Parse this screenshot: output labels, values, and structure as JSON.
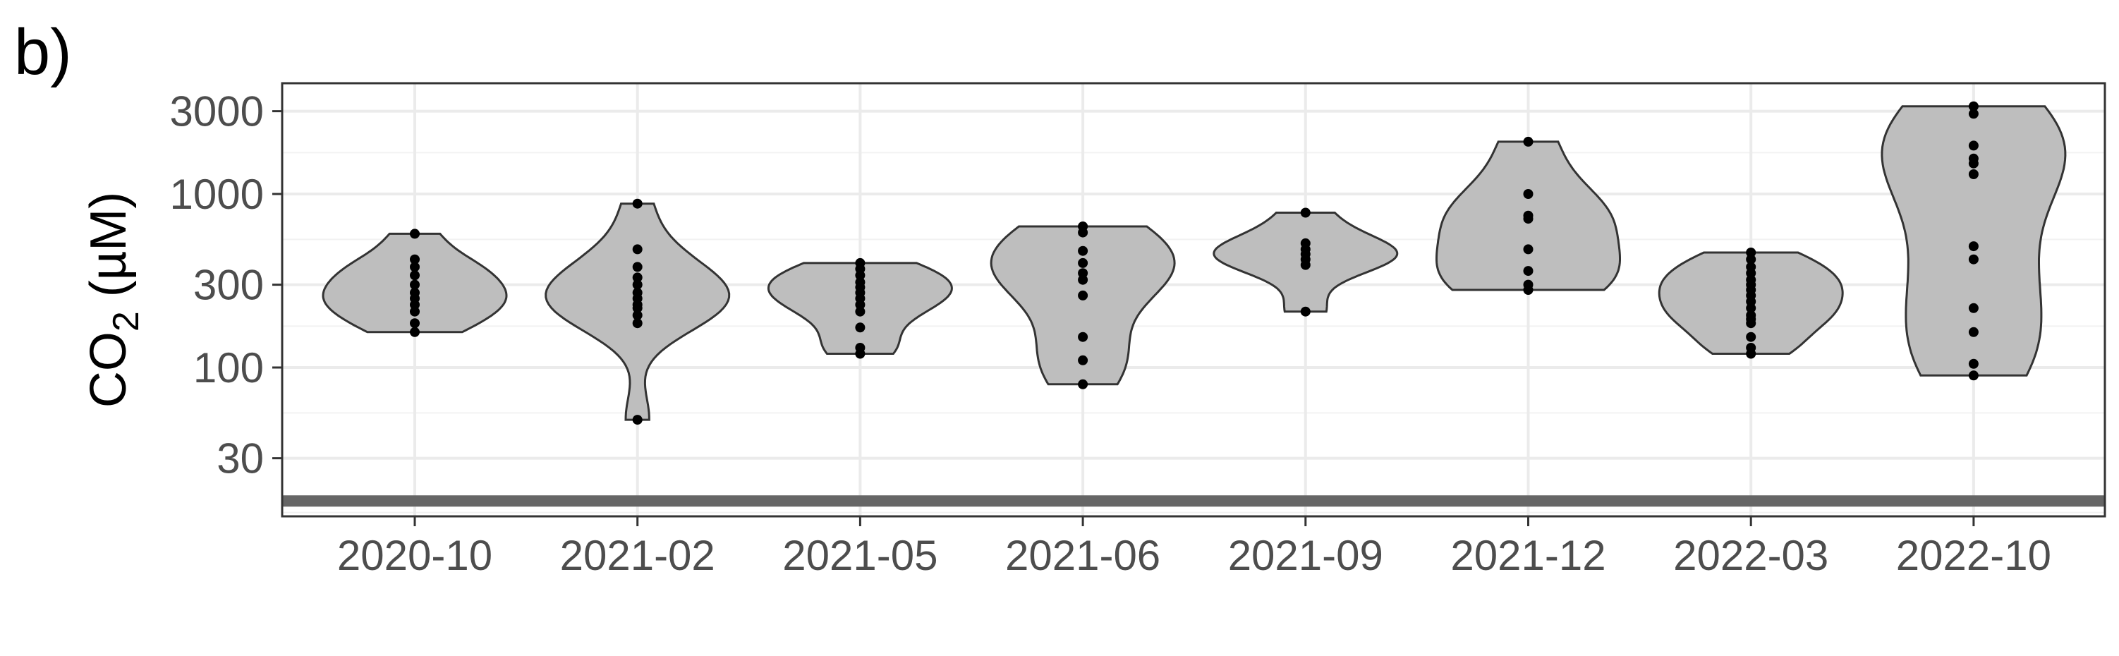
{
  "panel_label": "b)",
  "chart_data": {
    "type": "violin",
    "title": "",
    "ylabel_main": "CO",
    "ylabel_sub": "2",
    "ylabel_unit": " (µM)",
    "xlabel": "",
    "yscale": "log10",
    "ylim": [
      15,
      4000
    ],
    "yticks": [
      30,
      100,
      300,
      1000,
      3000
    ],
    "ytick_labels": [
      "30",
      "100",
      "300",
      "1000",
      "3000"
    ],
    "reference_line_y": 17,
    "grid": true,
    "categories": [
      "2020-10",
      "2021-02",
      "2021-05",
      "2021-06",
      "2021-09",
      "2021-12",
      "2022-03",
      "2022-10"
    ],
    "groups": [
      {
        "label": "2020-10",
        "points": [
          590,
          420,
          380,
          340,
          300,
          270,
          250,
          230,
          210,
          180,
          160
        ]
      },
      {
        "label": "2021-02",
        "points": [
          880,
          480,
          380,
          330,
          300,
          270,
          250,
          230,
          220,
          200,
          180,
          50
        ]
      },
      {
        "label": "2021-05",
        "points": [
          400,
          370,
          340,
          310,
          290,
          270,
          250,
          230,
          210,
          170,
          130,
          120
        ]
      },
      {
        "label": "2021-06",
        "points": [
          650,
          600,
          470,
          400,
          350,
          320,
          260,
          150,
          110,
          80
        ]
      },
      {
        "label": "2021-09",
        "points": [
          780,
          520,
          480,
          450,
          420,
          390,
          210
        ]
      },
      {
        "label": "2021-12",
        "points": [
          2000,
          1000,
          750,
          720,
          480,
          360,
          300,
          280
        ]
      },
      {
        "label": "2022-03",
        "points": [
          460,
          420,
          380,
          350,
          320,
          300,
          280,
          260,
          240,
          220,
          200,
          190,
          180,
          150,
          130,
          120
        ]
      },
      {
        "label": "2022-10",
        "points": [
          3200,
          2900,
          1900,
          1600,
          1500,
          1300,
          500,
          420,
          220,
          160,
          105,
          90
        ]
      }
    ]
  }
}
